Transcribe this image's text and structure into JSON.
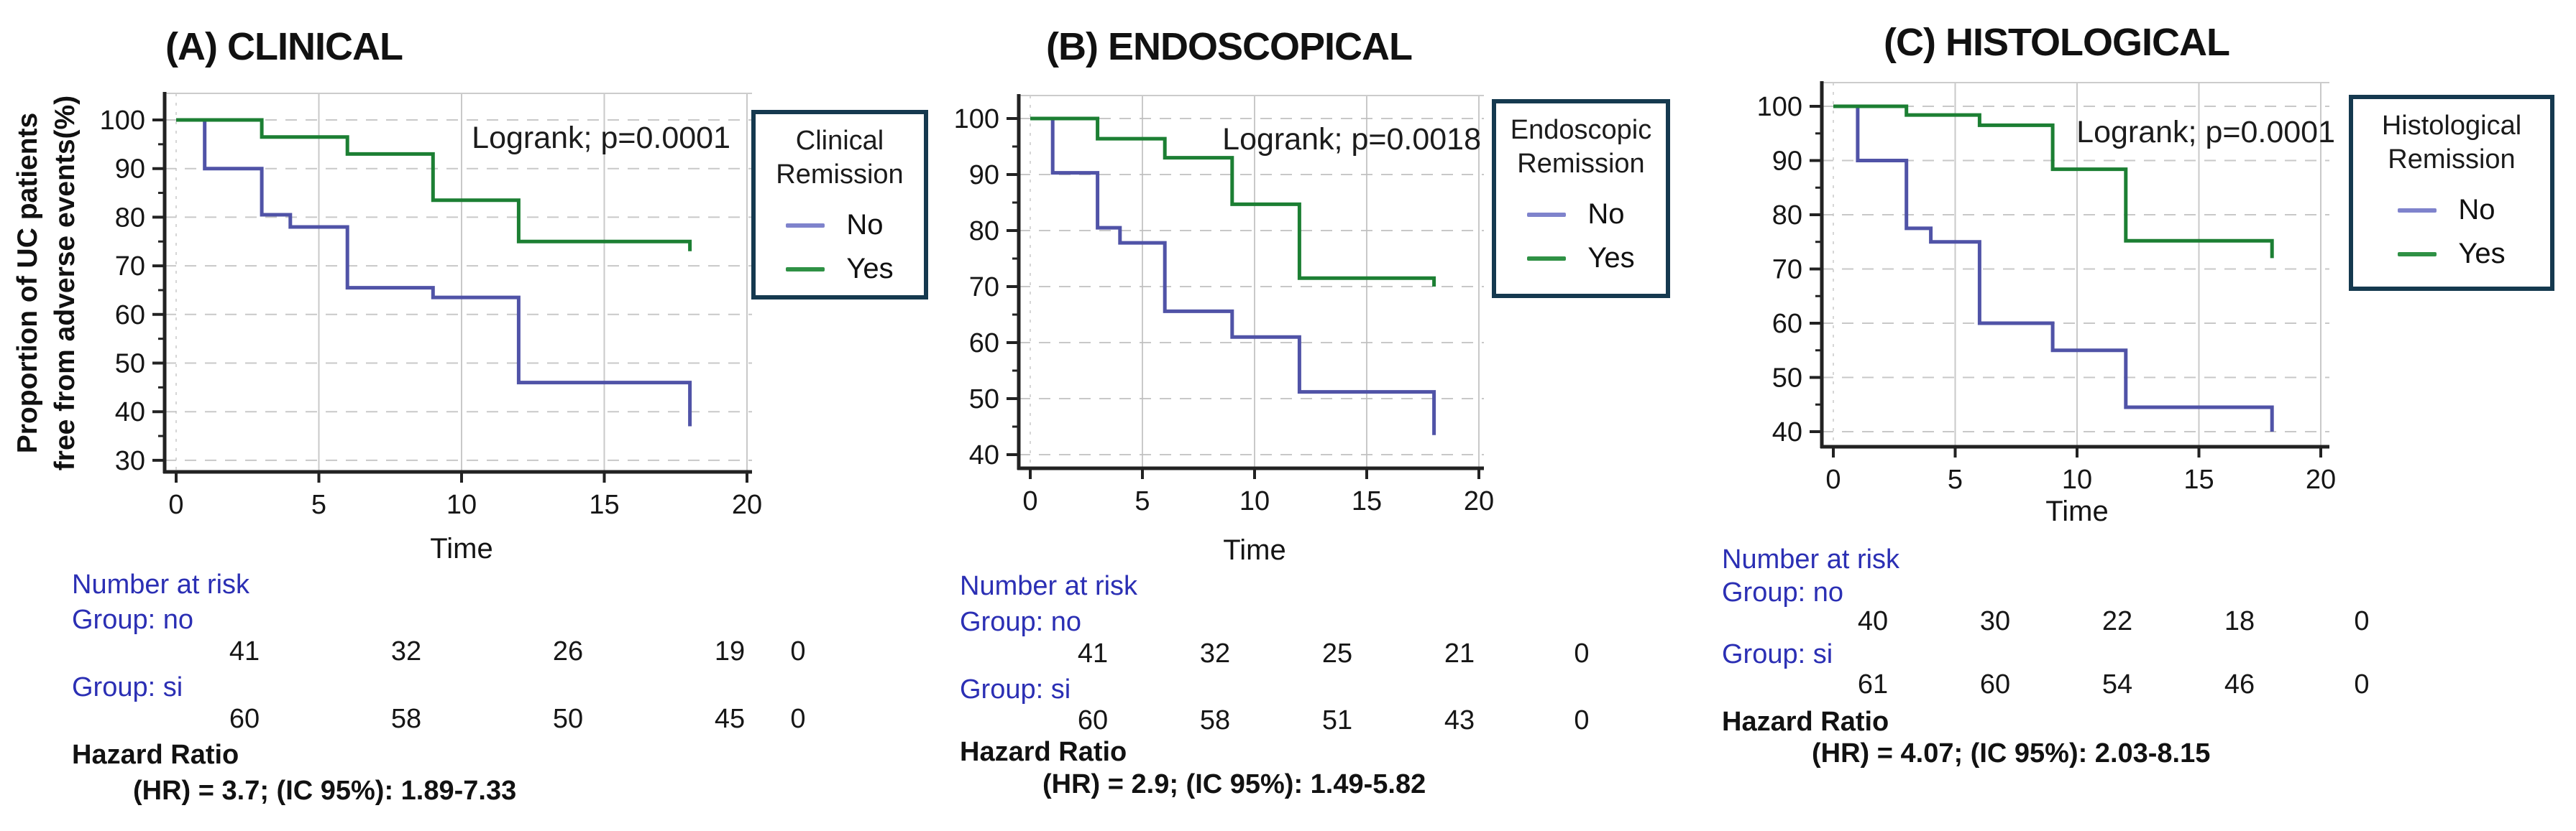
{
  "figure": {
    "background": "#ffffff"
  },
  "colors": {
    "no_curve": "#5053a7",
    "yes_curve": "#1c7f33",
    "no_swatch": "#7f83cc",
    "yes_swatch": "#2f9145",
    "legend_border": "#15394f",
    "risk_text_blue": "#2b2fb4",
    "axis": "#222222",
    "grid_vertical": "#c9c9c9",
    "grid_horizontal": "#bfbfbf"
  },
  "ylabel": {
    "line1": "Proportion of UC patients",
    "line2": "free from adverse events(%)"
  },
  "panels": [
    {
      "title": "(A) CLINICAL",
      "logrank": "Logrank; p=0.0001",
      "xlabel": "Time",
      "legend": {
        "title_line1": "Clinical",
        "title_line2": "Remission",
        "no": "No",
        "yes": "Yes"
      },
      "risk": {
        "header": "Number at risk",
        "group_no": "Group: no",
        "group_si": "Group: si",
        "no_values": [
          "41",
          "32",
          "26",
          "19",
          "0"
        ],
        "si_values": [
          "60",
          "58",
          "50",
          "45",
          "0"
        ]
      },
      "hazard_label": "Hazard Ratio",
      "hazard_value": "(HR) = 3.7; (IC 95%): 1.89-7.33"
    },
    {
      "title": "(B) ENDOSCOPICAL",
      "logrank": "Logrank; p=0.0018",
      "xlabel": "Time",
      "legend": {
        "title_line1": "Endoscopic",
        "title_line2": "Remission",
        "no": "No",
        "yes": "Yes"
      },
      "risk": {
        "header": "Number at risk",
        "group_no": "Group: no",
        "group_si": "Group: si",
        "no_values": [
          "41",
          "32",
          "25",
          "21",
          "0"
        ],
        "si_values": [
          "60",
          "58",
          "51",
          "43",
          "0"
        ]
      },
      "hazard_label": "Hazard Ratio",
      "hazard_value": "(HR) = 2.9; (IC 95%): 1.49-5.82"
    },
    {
      "title": "(C) HISTOLOGICAL",
      "logrank": "Logrank; p=0.0001",
      "xlabel": "Time",
      "legend": {
        "title_line1": "Histological",
        "title_line2": "Remission",
        "no": "No",
        "yes": "Yes"
      },
      "risk": {
        "header": "Number at risk",
        "group_no": "Group: no",
        "group_si": "Group: si",
        "no_values": [
          "40",
          "30",
          "22",
          "18",
          "0"
        ],
        "si_values": [
          "61",
          "60",
          "54",
          "46",
          "0"
        ]
      },
      "hazard_label": "Hazard Ratio",
      "hazard_value": "(HR) = 4.07; (IC 95%): 2.03-8.15"
    }
  ],
  "chart_data": [
    {
      "type": "line",
      "subtype": "kaplan-meier-step",
      "title": "(A) CLINICAL",
      "xlabel": "Time",
      "ylabel": "Proportion of UC patients free from adverse events(%)",
      "annotation": "Logrank; p=0.0001",
      "xlim": [
        0,
        20
      ],
      "ylim": [
        30,
        100
      ],
      "x_ticks": [
        0,
        5,
        10,
        15,
        20
      ],
      "y_ticks": [
        30,
        40,
        50,
        60,
        70,
        80,
        90,
        100
      ],
      "grid": true,
      "legend_position": "right",
      "series": [
        {
          "name": "No",
          "color_key": "no_curve",
          "step_points": [
            [
              0,
              100
            ],
            [
              1,
              90
            ],
            [
              3,
              80.5
            ],
            [
              4,
              78
            ],
            [
              6,
              65.5
            ],
            [
              9,
              63.5
            ],
            [
              12,
              46
            ],
            [
              18,
              37
            ]
          ]
        },
        {
          "name": "Yes",
          "color_key": "yes_curve",
          "step_points": [
            [
              0,
              100
            ],
            [
              3,
              96.5
            ],
            [
              6,
              93
            ],
            [
              9,
              83.5
            ],
            [
              12,
              75
            ],
            [
              18,
              73
            ]
          ]
        }
      ],
      "number_at_risk": {
        "times": [
          0,
          5,
          10,
          15,
          20
        ],
        "group_no": [
          41,
          32,
          26,
          19,
          0
        ],
        "group_si": [
          60,
          58,
          50,
          45,
          0
        ]
      },
      "hazard_ratio": "(HR) = 3.7; (IC 95%): 1.89-7.33"
    },
    {
      "type": "line",
      "subtype": "kaplan-meier-step",
      "title": "(B) ENDOSCOPICAL",
      "xlabel": "Time",
      "ylabel": "",
      "annotation": "Logrank; p=0.0018",
      "xlim": [
        0,
        20
      ],
      "ylim": [
        40,
        100
      ],
      "x_ticks": [
        0,
        5,
        10,
        15,
        20
      ],
      "y_ticks": [
        40,
        50,
        60,
        70,
        80,
        90,
        100
      ],
      "grid": true,
      "legend_position": "right",
      "series": [
        {
          "name": "No",
          "color_key": "no_curve",
          "step_points": [
            [
              0,
              100
            ],
            [
              1,
              90.3
            ],
            [
              3,
              80.5
            ],
            [
              4,
              77.8
            ],
            [
              6,
              65.6
            ],
            [
              9,
              61
            ],
            [
              12,
              51.2
            ],
            [
              18,
              43.5
            ]
          ]
        },
        {
          "name": "Yes",
          "color_key": "yes_curve",
          "step_points": [
            [
              0,
              100
            ],
            [
              3,
              96.4
            ],
            [
              6,
              93
            ],
            [
              9,
              84.7
            ],
            [
              12,
              71.5
            ],
            [
              18,
              70
            ]
          ]
        }
      ],
      "number_at_risk": {
        "times": [
          0,
          5,
          10,
          15,
          20
        ],
        "group_no": [
          41,
          32,
          25,
          21,
          0
        ],
        "group_si": [
          60,
          58,
          51,
          43,
          0
        ]
      },
      "hazard_ratio": "(HR) = 2.9; (IC 95%): 1.49-5.82"
    },
    {
      "type": "line",
      "subtype": "kaplan-meier-step",
      "title": "(C) HISTOLOGICAL",
      "xlabel": "Time",
      "ylabel": "",
      "annotation": "Logrank; p=0.0001",
      "xlim": [
        0,
        20
      ],
      "ylim": [
        40,
        100
      ],
      "x_ticks": [
        0,
        5,
        10,
        15,
        20
      ],
      "y_ticks": [
        40,
        50,
        60,
        70,
        80,
        90,
        100
      ],
      "grid": true,
      "legend_position": "right",
      "series": [
        {
          "name": "No",
          "color_key": "no_curve",
          "step_points": [
            [
              0,
              100
            ],
            [
              1,
              90
            ],
            [
              3,
              77.5
            ],
            [
              4,
              75
            ],
            [
              6,
              60
            ],
            [
              9,
              55
            ],
            [
              12,
              44.5
            ],
            [
              18,
              40
            ]
          ]
        },
        {
          "name": "Yes",
          "color_key": "yes_curve",
          "step_points": [
            [
              0,
              100
            ],
            [
              3,
              98.4
            ],
            [
              6,
              96.5
            ],
            [
              9,
              88.4
            ],
            [
              12,
              75.2
            ],
            [
              18,
              72
            ]
          ]
        }
      ],
      "number_at_risk": {
        "times": [
          0,
          5,
          10,
          15,
          20
        ],
        "group_no": [
          40,
          30,
          22,
          18,
          0
        ],
        "group_si": [
          61,
          60,
          54,
          46,
          0
        ]
      },
      "hazard_ratio": "(HR) = 4.07; (IC 95%): 2.03-8.15"
    }
  ]
}
